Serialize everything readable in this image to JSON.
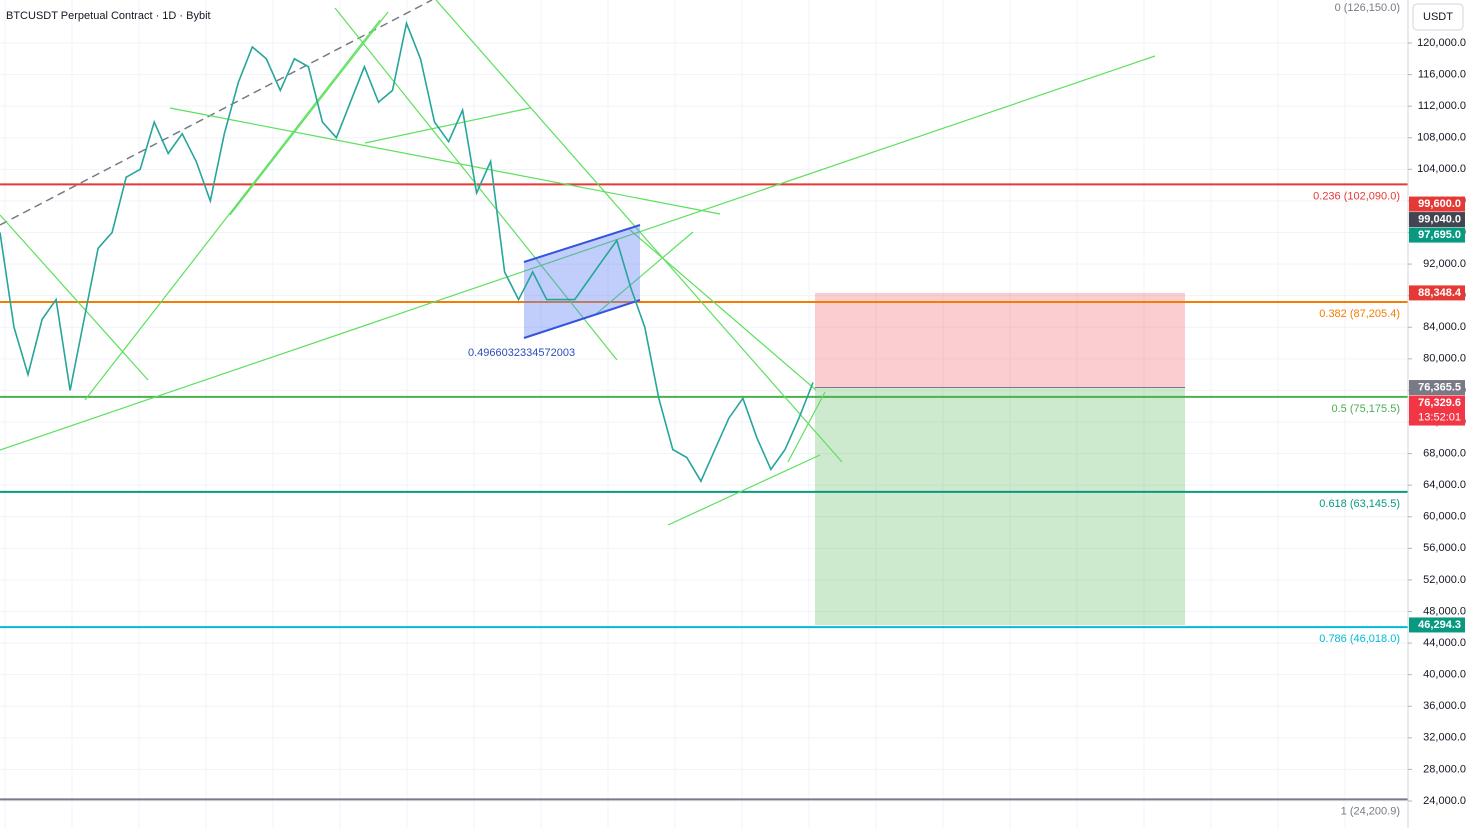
{
  "chart_data": {
    "type": "line",
    "title": "BTCUSDT Perpetual Contract · 1D · Bybit",
    "currency": "USDT",
    "series": [
      {
        "name": "BTCUSDT",
        "color": "#26a69a",
        "values": [
          96000,
          84000,
          78000,
          85000,
          87500,
          76000,
          85000,
          94000,
          96000,
          103000,
          104000,
          110000,
          106000,
          108500,
          105000,
          100000,
          108500,
          115000,
          119500,
          118000,
          114000,
          118000,
          117000,
          110000,
          108000,
          112500,
          117000,
          112500,
          114000,
          122500,
          118000,
          110000,
          107500,
          111500,
          101000,
          105000,
          91000,
          87500,
          91000,
          87500,
          87500,
          87500,
          90000,
          92500,
          95000,
          89000,
          84000,
          75000,
          68500,
          67500,
          64500,
          68500,
          72500,
          75000,
          70000,
          66000,
          68500,
          72500,
          77000
        ]
      }
    ],
    "ylim": [
      20580,
      125446
    ],
    "yticks": [
      {
        "value": 24000,
        "label": "24,000.0"
      },
      {
        "value": 28000,
        "label": "28,000.0"
      },
      {
        "value": 32000,
        "label": "32,000.0"
      },
      {
        "value": 36000,
        "label": "36,000.0"
      },
      {
        "value": 40000,
        "label": "40,000.0"
      },
      {
        "value": 44000,
        "label": "44,000.0"
      },
      {
        "value": 48000,
        "label": "48,000.0"
      },
      {
        "value": 52000,
        "label": "52,000.0"
      },
      {
        "value": 56000,
        "label": "56,000.0"
      },
      {
        "value": 60000,
        "label": "60,000.0"
      },
      {
        "value": 64000,
        "label": "64,000.0"
      },
      {
        "value": 68000,
        "label": "68,000.0"
      },
      {
        "value": 72000,
        "label": "72,000.0"
      },
      {
        "value": 76000,
        "label": "76,000.0"
      },
      {
        "value": 80000,
        "label": "80,000.0"
      },
      {
        "value": 84000,
        "label": "84,000.0"
      },
      {
        "value": 88000,
        "label": "88,000.0"
      },
      {
        "value": 92000,
        "label": "92,000.0"
      },
      {
        "value": 96000,
        "label": "96,000.0"
      },
      {
        "value": 100000,
        "label": "100,000.0"
      },
      {
        "value": 104000,
        "label": "104,000.0"
      },
      {
        "value": 108000,
        "label": "108,000.0"
      },
      {
        "value": 112000,
        "label": "112,000.0"
      },
      {
        "value": 116000,
        "label": "116,000.0"
      },
      {
        "value": 120000,
        "label": "120,000.0"
      }
    ],
    "grid": true,
    "fib_levels": [
      {
        "value": 126150,
        "label": "0 (126,150.0)",
        "color": "#787b86"
      },
      {
        "value": 102090,
        "label": "0.236 (102,090.0)",
        "color": "#e53935"
      },
      {
        "value": 87205.4,
        "label": "0.382 (87,205.4)",
        "color": "#f57c00"
      },
      {
        "value": 75175.5,
        "label": "0.5 (75,175.5)",
        "color": "#4caf50"
      },
      {
        "value": 63145.5,
        "label": "0.618 (63,145.5)",
        "color": "#089981"
      },
      {
        "value": 46018,
        "label": "0.786 (46,018.0)",
        "color": "#00bcd4"
      },
      {
        "value": 24200.9,
        "label": "1 (24,200.9)",
        "color": "#787b86"
      }
    ],
    "price_badges": [
      {
        "value": 99600,
        "label": "99,600.0",
        "color": "#e53935"
      },
      {
        "value": 99040,
        "label": "99,040.0",
        "color": "#434651"
      },
      {
        "value": 97695,
        "label": "97,695.0",
        "color": "#089981"
      },
      {
        "value": 88348.4,
        "label": "88,348.4",
        "color": "#e53935"
      },
      {
        "value": 76365.5,
        "label": "76,365.5",
        "color": "#787b86"
      },
      {
        "value": 76329.6,
        "label": "76,329.6",
        "sublabel": "13:52:01",
        "color": "#f23645"
      },
      {
        "value": 46294.3,
        "label": "46,294.3",
        "color": "#089981"
      }
    ],
    "channel_label": "0.4966032334572003"
  }
}
